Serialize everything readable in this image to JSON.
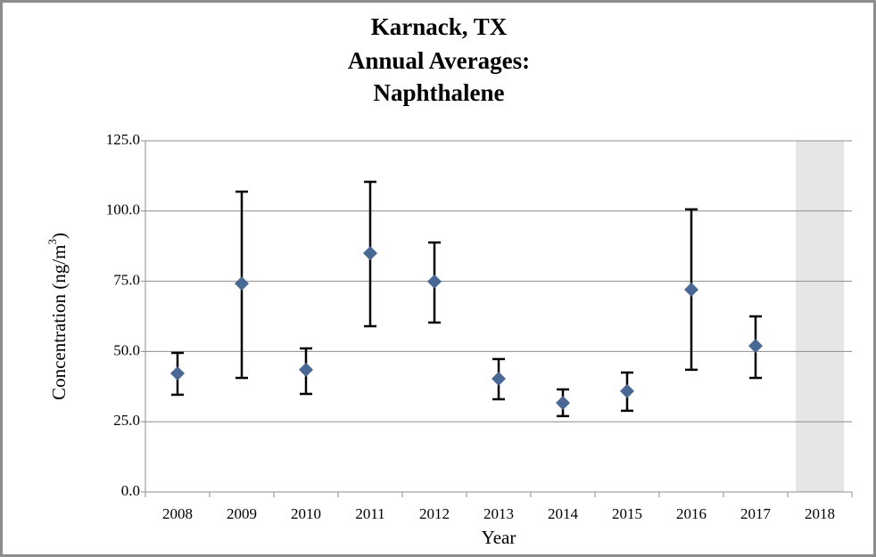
{
  "chart_data": {
    "type": "errorbar",
    "title": [
      "Karnack, TX",
      "Annual Averages:",
      "Naphthalene"
    ],
    "x_label": "Year",
    "y_label": [
      "Concentration (ng/m",
      "3",
      ")"
    ],
    "categories": [
      "2008",
      "2009",
      "2010",
      "2011",
      "2012",
      "2013",
      "2014",
      "2015",
      "2016",
      "2017",
      "2018"
    ],
    "values": [
      42.2,
      74.2,
      43.5,
      85.0,
      74.9,
      40.3,
      31.7,
      35.9,
      72.0,
      52.0,
      null
    ],
    "lower": [
      34.6,
      40.6,
      34.9,
      59.0,
      60.3,
      33.0,
      27.0,
      28.9,
      43.5,
      40.6,
      null
    ],
    "upper": [
      49.5,
      106.9,
      51.1,
      110.4,
      88.8,
      47.3,
      36.5,
      42.5,
      100.6,
      62.5,
      null
    ],
    "color": "#4a6894",
    "shade_null": true,
    "ylim": [
      0,
      125
    ],
    "yticks": [
      {
        "value": 0,
        "label": "0.0"
      },
      {
        "value": 25,
        "label": "25.0"
      },
      {
        "value": 50,
        "label": "50.0"
      },
      {
        "value": 75,
        "label": "75.0"
      },
      {
        "value": 100,
        "label": "100.0"
      },
      {
        "value": 125,
        "label": "125.0"
      }
    ],
    "grid": true
  }
}
